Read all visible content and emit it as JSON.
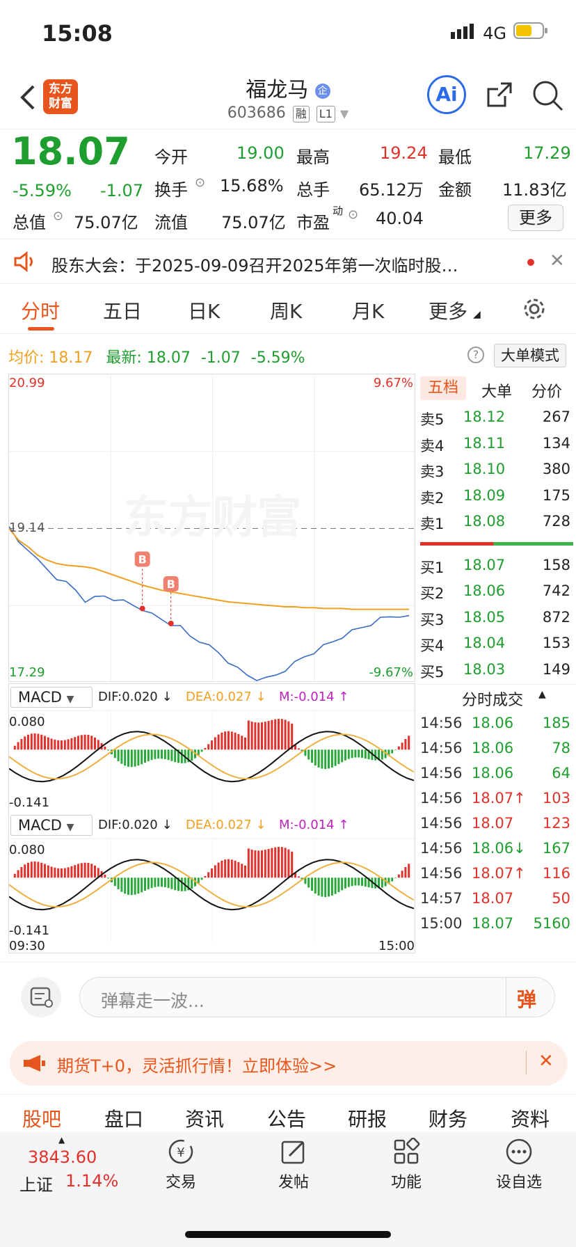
{
  "status": {
    "time": "15:08",
    "network": "4G"
  },
  "header": {
    "logo": "东方财富",
    "name": "福龙马",
    "code": "603686",
    "tags": [
      "融",
      "L1"
    ],
    "ai": "Ai"
  },
  "quote": {
    "price": "18.07",
    "pct": "-5.59%",
    "chg": "-1.07",
    "fields": [
      [
        "今开",
        "19.00"
      ],
      [
        "最高",
        "19.24"
      ],
      [
        "最低",
        "17.29"
      ],
      [
        "换手",
        "15.68%"
      ],
      [
        "总手",
        "65.12万"
      ],
      [
        "金额",
        "11.83亿"
      ],
      [
        "总值",
        "75.07亿"
      ],
      [
        "流值",
        "75.07亿"
      ],
      [
        "市盈",
        "40.04"
      ]
    ],
    "more": "更多",
    "pe_sup": "动"
  },
  "announcement": "股东大会：于2025-09-09召开2025年第一次临时股…",
  "tabs": [
    "分时",
    "五日",
    "日K",
    "周K",
    "月K",
    "更多"
  ],
  "infobar": {
    "avg_label": "均价:",
    "avg": "18.17",
    "latest_label": "最新:",
    "latest": "18.07",
    "chg": "-1.07",
    "pct": "-5.59%",
    "mode": "大单模式"
  },
  "chart_data": {
    "type": "line",
    "title": "",
    "ylim": [
      17.29,
      20.99
    ],
    "prev_close": 19.14,
    "pct_top": "9.67%",
    "pct_bottom": "-9.67%",
    "x_labels": [
      "09:30",
      "15:00"
    ],
    "watermark": "东方财富",
    "series": [
      {
        "name": "",
        "values": [
          19.14,
          18.98,
          18.9,
          18.75,
          18.65,
          18.55,
          18.48,
          18.4,
          18.28,
          18.3,
          18.33,
          18.3,
          18.26,
          18.22,
          18.18,
          18.1,
          18.05,
          18.0,
          17.95,
          17.85,
          17.8,
          17.72,
          17.65,
          17.55,
          17.45,
          17.38,
          17.34,
          17.33,
          17.38,
          17.45,
          17.52,
          17.6,
          17.66,
          17.72,
          17.78,
          17.85,
          17.9,
          17.95,
          18.0,
          18.05,
          18.08,
          18.1,
          18.07
        ]
      },
      {
        "name": "",
        "values": [
          19.14,
          19.0,
          18.92,
          18.82,
          18.76,
          18.72,
          18.7,
          18.69,
          18.68,
          18.66,
          18.62,
          18.58,
          18.54,
          18.5,
          18.46,
          18.43,
          18.4,
          18.38,
          18.36,
          18.34,
          18.32,
          18.3,
          18.28,
          18.26,
          18.25,
          18.24,
          18.23,
          18.22,
          18.21,
          18.2,
          18.2,
          18.19,
          18.19,
          18.18,
          18.18,
          18.18,
          18.17,
          18.17,
          18.17,
          18.17,
          18.17,
          18.17,
          18.17
        ]
      }
    ],
    "markers": [
      "B",
      "B"
    ]
  },
  "macd": {
    "label": "MACD",
    "dif": "DIF:0.020 ↓",
    "dea": "DEA:0.027 ↓",
    "m": "M:-0.014 ↑",
    "top": "0.080",
    "bottom": "-0.141"
  },
  "orderbook": {
    "tabs": [
      "五档",
      "大单",
      "分价"
    ],
    "asks": [
      [
        "卖5",
        "18.12",
        "267"
      ],
      [
        "卖4",
        "18.11",
        "134"
      ],
      [
        "卖3",
        "18.10",
        "380"
      ],
      [
        "卖2",
        "18.09",
        "175"
      ],
      [
        "卖1",
        "18.08",
        "728"
      ]
    ],
    "bids": [
      [
        "买1",
        "18.07",
        "158"
      ],
      [
        "买2",
        "18.06",
        "742"
      ],
      [
        "买3",
        "18.05",
        "872"
      ],
      [
        "买4",
        "18.04",
        "153"
      ],
      [
        "买5",
        "18.03",
        "149"
      ]
    ]
  },
  "trades": {
    "title": "分时成交",
    "rows": [
      [
        "14:56",
        "18.06",
        "185",
        "g",
        ""
      ],
      [
        "14:56",
        "18.06",
        "78",
        "g",
        ""
      ],
      [
        "14:56",
        "18.06",
        "64",
        "g",
        ""
      ],
      [
        "14:56",
        "18.07",
        "103",
        "r",
        "↑"
      ],
      [
        "14:56",
        "18.07",
        "123",
        "r",
        ""
      ],
      [
        "14:56",
        "18.06",
        "167",
        "g",
        "↓"
      ],
      [
        "14:56",
        "18.07",
        "116",
        "r",
        "↑"
      ],
      [
        "14:57",
        "18.07",
        "50",
        "r",
        ""
      ],
      [
        "15:00",
        "18.07",
        "5160",
        "g",
        ""
      ]
    ]
  },
  "danmu": {
    "placeholder": "弹幕走一波...",
    "send": "弹"
  },
  "ad": "期货T+0，灵活抓行情！立即体验>>",
  "subnav": [
    "股吧",
    "盘口",
    "资讯",
    "公告",
    "研报",
    "财务",
    "资料"
  ],
  "bottom": {
    "index_value": "3843.60",
    "index_name": "上证",
    "index_pct": "1.14%",
    "items": [
      "交易",
      "发帖",
      "功能",
      "设自选"
    ]
  }
}
